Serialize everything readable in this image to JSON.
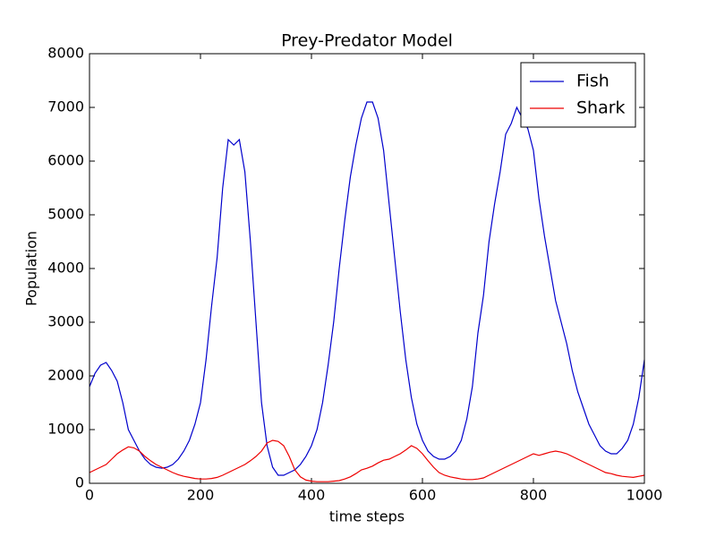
{
  "chart_data": {
    "type": "line",
    "title": "Prey-Predator Model",
    "x_label": "time steps",
    "y_label": "Population",
    "x": [
      0,
      10,
      20,
      30,
      40,
      50,
      60,
      70,
      80,
      90,
      100,
      110,
      120,
      130,
      140,
      150,
      160,
      170,
      180,
      190,
      200,
      210,
      220,
      230,
      240,
      250,
      260,
      270,
      280,
      290,
      300,
      310,
      320,
      330,
      340,
      350,
      360,
      370,
      380,
      390,
      400,
      410,
      420,
      430,
      440,
      450,
      460,
      470,
      480,
      490,
      500,
      510,
      520,
      530,
      540,
      550,
      560,
      570,
      580,
      590,
      600,
      610,
      620,
      630,
      640,
      650,
      660,
      670,
      680,
      690,
      700,
      710,
      720,
      730,
      740,
      750,
      760,
      770,
      780,
      790,
      800,
      810,
      820,
      830,
      840,
      850,
      860,
      870,
      880,
      890,
      900,
      910,
      920,
      930,
      940,
      950,
      960,
      970,
      980,
      990,
      1000
    ],
    "series": [
      {
        "name": "Fish",
        "color": "#0000cc",
        "values": [
          1800,
          2050,
          2200,
          2250,
          2100,
          1900,
          1500,
          1000,
          800,
          600,
          450,
          350,
          300,
          280,
          300,
          350,
          450,
          600,
          800,
          1100,
          1500,
          2300,
          3300,
          4200,
          5500,
          6400,
          6300,
          6400,
          5800,
          4500,
          3000,
          1500,
          700,
          300,
          150,
          150,
          200,
          250,
          350,
          500,
          700,
          1000,
          1500,
          2200,
          3000,
          4000,
          4900,
          5700,
          6300,
          6800,
          7100,
          7100,
          6800,
          6200,
          5200,
          4200,
          3200,
          2300,
          1600,
          1100,
          800,
          600,
          500,
          450,
          450,
          500,
          600,
          800,
          1200,
          1800,
          2800,
          3500,
          4500,
          5200,
          5800,
          6500,
          6700,
          7000,
          6800,
          6600,
          6200,
          5300,
          4600,
          4000,
          3400,
          3000,
          2600,
          2100,
          1700,
          1400,
          1100,
          900,
          700,
          600,
          550,
          550,
          650,
          800,
          1100,
          1600,
          2300
        ]
      },
      {
        "name": "Shark",
        "color": "#ee0000",
        "values": [
          200,
          250,
          300,
          350,
          450,
          550,
          620,
          680,
          660,
          600,
          500,
          420,
          350,
          300,
          250,
          200,
          160,
          130,
          110,
          90,
          80,
          80,
          90,
          110,
          150,
          200,
          250,
          300,
          350,
          420,
          500,
          600,
          750,
          800,
          780,
          700,
          500,
          250,
          120,
          60,
          40,
          30,
          30,
          30,
          40,
          50,
          80,
          120,
          180,
          250,
          280,
          320,
          380,
          430,
          450,
          500,
          550,
          620,
          700,
          650,
          550,
          420,
          300,
          200,
          150,
          120,
          100,
          80,
          70,
          70,
          80,
          100,
          150,
          200,
          250,
          300,
          350,
          400,
          450,
          500,
          550,
          520,
          550,
          580,
          600,
          580,
          550,
          500,
          450,
          400,
          350,
          300,
          250,
          200,
          180,
          150,
          130,
          120,
          110,
          130,
          150
        ]
      }
    ],
    "xlim": [
      0,
      1000
    ],
    "xticks": [
      0,
      200,
      400,
      600,
      800,
      1000
    ],
    "ylim": [
      0,
      8000
    ],
    "yticks": [
      0,
      1000,
      2000,
      3000,
      4000,
      5000,
      6000,
      7000,
      8000
    ],
    "grid": false,
    "legend": "upper right"
  }
}
